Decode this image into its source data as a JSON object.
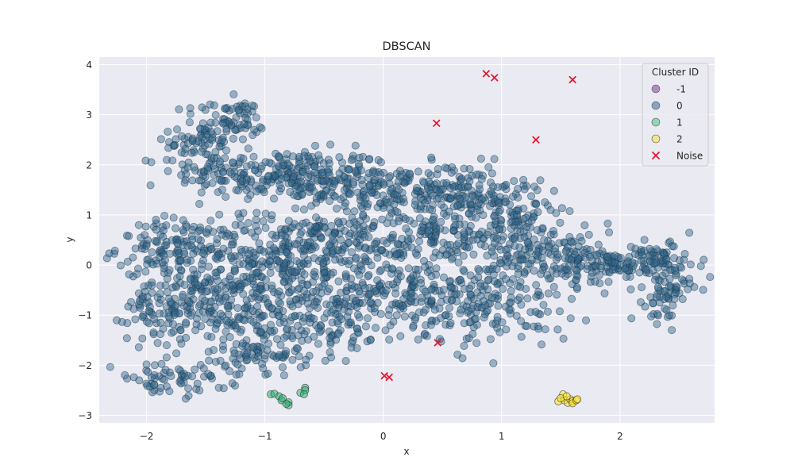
{
  "chart_data": {
    "type": "scatter",
    "title": "DBSCAN",
    "xlabel": "x",
    "ylabel": "y",
    "xlim": [
      -2.4,
      2.8
    ],
    "ylim": [
      -3.15,
      4.15
    ],
    "xticks": [
      -2,
      -1,
      0,
      1,
      2
    ],
    "xtick_labels": [
      "−2",
      "−1",
      "0",
      "1",
      "2"
    ],
    "yticks": [
      -3,
      -2,
      -1,
      0,
      1,
      2,
      3,
      4
    ],
    "ytick_labels": [
      "−3",
      "−2",
      "−1",
      "0",
      "1",
      "2",
      "3",
      "4"
    ],
    "grid": true,
    "legend": {
      "title": "Cluster ID",
      "placement": "top-right",
      "entries": [
        {
          "label": "-1",
          "color": "#b48bbd",
          "marker": "circle"
        },
        {
          "label": "0",
          "color": "#8aa4bd",
          "marker": "circle"
        },
        {
          "label": "1",
          "color": "#93d3b6",
          "marker": "circle"
        },
        {
          "label": "2",
          "color": "#f2e48d",
          "marker": "circle"
        },
        {
          "label": "Noise",
          "color": "#e8112d",
          "marker": "x"
        }
      ]
    },
    "colors": {
      "plot_background": "#eaeaf2",
      "grid": "#ffffff",
      "cluster_0": "#31688e",
      "cluster_1": "#35b779",
      "cluster_2": "#fde725",
      "noise": "#e8112d"
    },
    "series": [
      {
        "name": "0",
        "color": "#31688e",
        "regions": [
          {
            "cx": -0.85,
            "cy": 1.8,
            "sx": 0.45,
            "sy": 0.25,
            "n": 260
          },
          {
            "cx": -1.5,
            "cy": 2.5,
            "sx": 0.15,
            "sy": 0.35,
            "n": 90
          },
          {
            "cx": -1.25,
            "cy": 2.9,
            "sx": 0.12,
            "sy": 0.2,
            "n": 50
          },
          {
            "cx": -1.75,
            "cy": 0.35,
            "sx": 0.25,
            "sy": 0.3,
            "n": 110
          },
          {
            "cx": -1.75,
            "cy": -0.8,
            "sx": 0.2,
            "sy": 0.35,
            "n": 130
          },
          {
            "cx": -1.2,
            "cy": -0.5,
            "sx": 0.4,
            "sy": 0.5,
            "n": 240
          },
          {
            "cx": -0.75,
            "cy": 0.3,
            "sx": 0.4,
            "sy": 0.35,
            "n": 200
          },
          {
            "cx": -0.6,
            "cy": -1.1,
            "sx": 0.4,
            "sy": 0.35,
            "n": 160
          },
          {
            "cx": 0.1,
            "cy": 0.6,
            "sx": 0.5,
            "sy": 0.45,
            "n": 260
          },
          {
            "cx": 0.15,
            "cy": 1.5,
            "sx": 0.45,
            "sy": 0.25,
            "n": 170
          },
          {
            "cx": 0.75,
            "cy": 1.4,
            "sx": 0.3,
            "sy": 0.3,
            "n": 110
          },
          {
            "cx": 0.1,
            "cy": -0.6,
            "sx": 0.3,
            "sy": 0.35,
            "n": 140
          },
          {
            "cx": 0.9,
            "cy": -0.8,
            "sx": 0.35,
            "sy": 0.4,
            "n": 170
          },
          {
            "cx": 1.1,
            "cy": 0.6,
            "sx": 0.3,
            "sy": 0.4,
            "n": 140
          },
          {
            "cx": 1.5,
            "cy": 0.1,
            "sx": 0.3,
            "sy": 0.25,
            "n": 110
          },
          {
            "cx": 2.0,
            "cy": 0.0,
            "sx": 0.3,
            "sy": 0.18,
            "n": 90
          },
          {
            "cx": 2.4,
            "cy": -0.55,
            "sx": 0.1,
            "sy": 0.3,
            "n": 70
          },
          {
            "cx": 2.35,
            "cy": 0.15,
            "sx": 0.12,
            "sy": 0.15,
            "n": 40
          },
          {
            "cx": -1.8,
            "cy": -2.3,
            "sx": 0.25,
            "sy": 0.15,
            "n": 60
          },
          {
            "cx": -1.1,
            "cy": -1.8,
            "sx": 0.35,
            "sy": 0.2,
            "n": 70
          }
        ]
      },
      {
        "name": "1",
        "color": "#35b779",
        "points": [
          [
            -0.95,
            -2.58
          ],
          [
            -0.92,
            -2.57
          ],
          [
            -0.88,
            -2.62
          ],
          [
            -0.86,
            -2.7
          ],
          [
            -0.8,
            -2.74
          ],
          [
            -0.8,
            -2.8
          ],
          [
            -0.82,
            -2.77
          ],
          [
            -0.7,
            -2.55
          ],
          [
            -0.66,
            -2.45
          ],
          [
            -0.66,
            -2.5
          ],
          [
            -0.67,
            -2.58
          ],
          [
            -0.85,
            -2.66
          ]
        ]
      },
      {
        "name": "2",
        "color": "#fde725",
        "points": [
          [
            1.48,
            -2.72
          ],
          [
            1.52,
            -2.58
          ],
          [
            1.53,
            -2.7
          ],
          [
            1.56,
            -2.75
          ],
          [
            1.58,
            -2.68
          ],
          [
            1.6,
            -2.72
          ],
          [
            1.6,
            -2.76
          ],
          [
            1.63,
            -2.7
          ],
          [
            1.64,
            -2.68
          ],
          [
            1.5,
            -2.66
          ],
          [
            1.55,
            -2.62
          ]
        ]
      },
      {
        "name": "Noise",
        "color": "#e8112d",
        "points": [
          [
            0.87,
            3.82
          ],
          [
            0.94,
            3.74
          ],
          [
            1.6,
            3.7
          ],
          [
            0.45,
            2.83
          ],
          [
            1.29,
            2.5
          ],
          [
            0.46,
            -1.55
          ],
          [
            0.01,
            -2.21
          ],
          [
            0.05,
            -2.24
          ]
        ]
      }
    ]
  }
}
